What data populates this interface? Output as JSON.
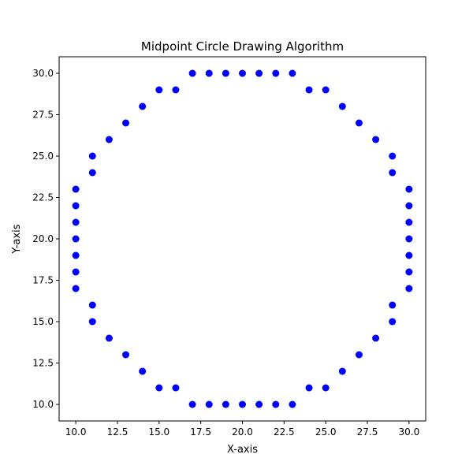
{
  "chart_data": {
    "type": "scatter",
    "title": "Midpoint Circle Drawing Algorithm",
    "xlabel": "X-axis",
    "ylabel": "Y-axis",
    "xlim": [
      9.0,
      31.0
    ],
    "ylim": [
      9.0,
      31.0
    ],
    "x_ticks": [
      10.0,
      12.5,
      15.0,
      17.5,
      20.0,
      22.5,
      25.0,
      27.5,
      30.0
    ],
    "x_tick_labels": [
      "10.0",
      "12.5",
      "15.0",
      "17.5",
      "20.0",
      "22.5",
      "25.0",
      "27.5",
      "30.0"
    ],
    "y_ticks": [
      10.0,
      12.5,
      15.0,
      17.5,
      20.0,
      22.5,
      25.0,
      27.5,
      30.0
    ],
    "y_tick_labels": [
      "10.0",
      "12.5",
      "15.0",
      "17.5",
      "20.0",
      "22.5",
      "25.0",
      "27.5",
      "30.0"
    ],
    "grid": false,
    "marker_color": "#0000ff",
    "points": [
      [
        17,
        30
      ],
      [
        18,
        30
      ],
      [
        19,
        30
      ],
      [
        20,
        30
      ],
      [
        21,
        30
      ],
      [
        22,
        30
      ],
      [
        23,
        30
      ],
      [
        15,
        29
      ],
      [
        16,
        29
      ],
      [
        24,
        29
      ],
      [
        25,
        29
      ],
      [
        14,
        28
      ],
      [
        26,
        28
      ],
      [
        13,
        27
      ],
      [
        27,
        27
      ],
      [
        12,
        26
      ],
      [
        28,
        26
      ],
      [
        11,
        25
      ],
      [
        29,
        25
      ],
      [
        11,
        24
      ],
      [
        29,
        24
      ],
      [
        10,
        23
      ],
      [
        30,
        23
      ],
      [
        10,
        22
      ],
      [
        30,
        22
      ],
      [
        10,
        21
      ],
      [
        30,
        21
      ],
      [
        10,
        20
      ],
      [
        30,
        20
      ],
      [
        10,
        19
      ],
      [
        30,
        19
      ],
      [
        10,
        18
      ],
      [
        30,
        18
      ],
      [
        10,
        17
      ],
      [
        30,
        17
      ],
      [
        11,
        16
      ],
      [
        29,
        16
      ],
      [
        11,
        15
      ],
      [
        29,
        15
      ],
      [
        12,
        14
      ],
      [
        28,
        14
      ],
      [
        13,
        13
      ],
      [
        27,
        13
      ],
      [
        14,
        12
      ],
      [
        26,
        12
      ],
      [
        15,
        11
      ],
      [
        16,
        11
      ],
      [
        24,
        11
      ],
      [
        25,
        11
      ],
      [
        17,
        10
      ],
      [
        18,
        10
      ],
      [
        19,
        10
      ],
      [
        20,
        10
      ],
      [
        21,
        10
      ],
      [
        22,
        10
      ],
      [
        23,
        10
      ]
    ]
  }
}
